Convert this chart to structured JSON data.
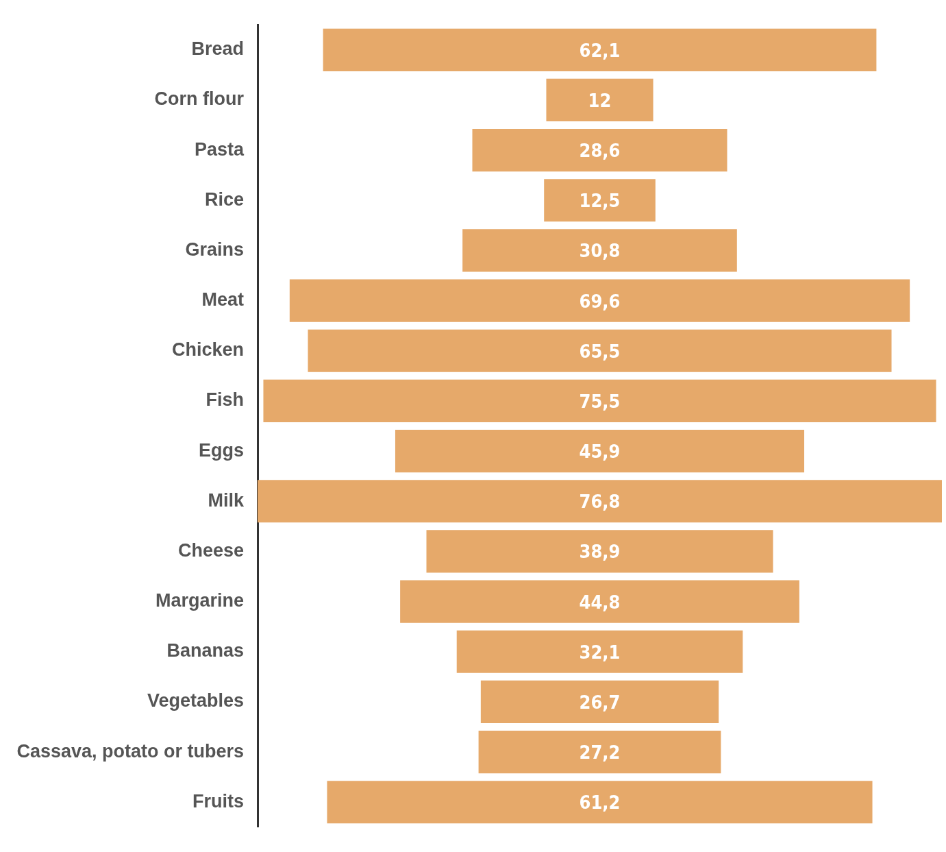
{
  "chart_data": {
    "type": "other",
    "categories": [
      "Bread",
      "Corn flour",
      "Pasta",
      "Rice",
      "Grains",
      "Meat",
      "Chicken",
      "Fish",
      "Eggs",
      "Milk",
      "Cheese",
      "Margarine",
      "Bananas",
      "Vegetables",
      "Cassava, potato or tubers",
      "Fruits"
    ],
    "values": [
      62.1,
      12,
      28.6,
      12.5,
      30.8,
      69.6,
      65.5,
      75.5,
      45.9,
      76.8,
      38.9,
      44.8,
      32.1,
      26.7,
      27.2,
      61.2
    ],
    "value_labels": [
      "62,1",
      "12",
      "28,6",
      "12,5",
      "30,8",
      "69,6",
      "65,5",
      "75,5",
      "45,9",
      "76,8",
      "38,9",
      "44,8",
      "32,1",
      "26,7",
      "27,2",
      "61,2"
    ],
    "color": "#e6a96a"
  }
}
